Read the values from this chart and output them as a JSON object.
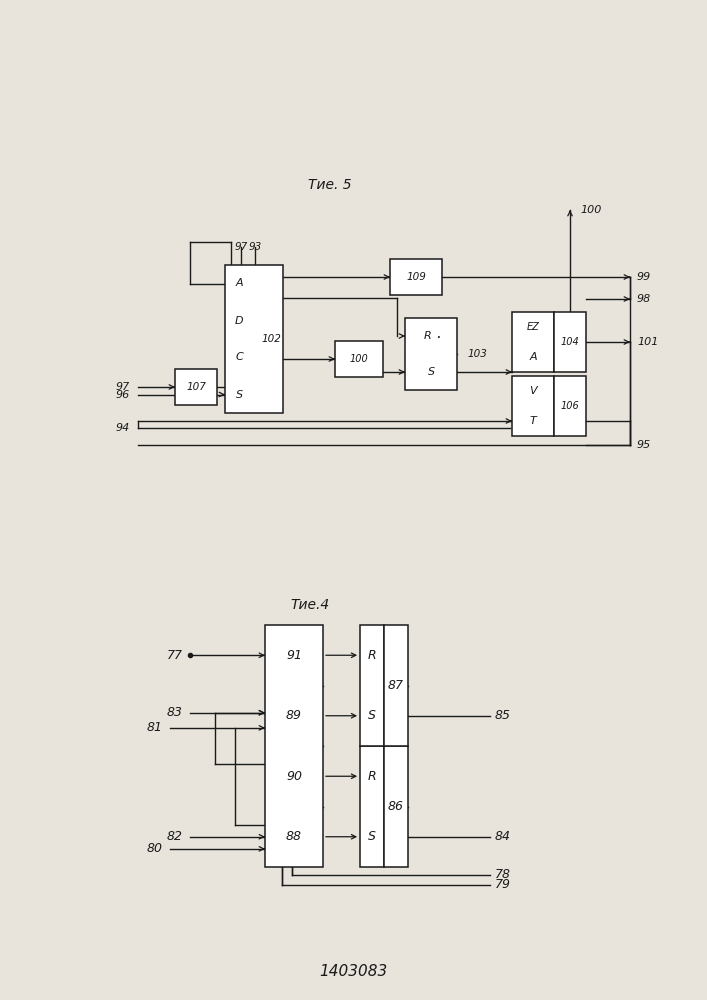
{
  "title": "1403083",
  "bg": "#e8e4dc",
  "lc": "#1a1a1a",
  "fig4_caption": "Τие.4",
  "fig5_caption": "Τие. 5"
}
